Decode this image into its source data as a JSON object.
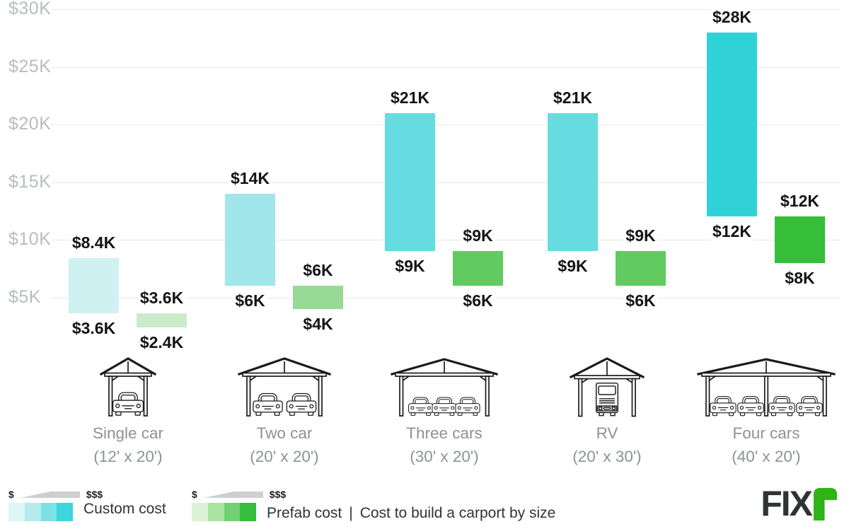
{
  "chart_data": {
    "type": "bar",
    "title": "Cost to build a carport by size",
    "ylim": [
      0,
      30
    ],
    "grid": true,
    "y_ticks": [
      "$30K",
      "$25K",
      "$20K",
      "$15K",
      "$10K",
      "$5K"
    ],
    "y_tick_values": [
      30,
      25,
      20,
      15,
      10,
      5
    ],
    "series_names": [
      "Custom cost",
      "Prefab cost"
    ],
    "categories": [
      {
        "label": "Single car",
        "dims": "(12' x 20')",
        "icon": "carport-1-car-icon",
        "custom": {
          "min": 3.6,
          "max": 8.4,
          "min_label": "$3.6K",
          "max_label": "$8.4K",
          "color": "#cff1f1"
        },
        "prefab": {
          "min": 2.4,
          "max": 3.6,
          "min_label": "$2.4K",
          "max_label": "$3.6K",
          "color": "#caebca"
        }
      },
      {
        "label": "Two car",
        "dims": "(20' x 20')",
        "icon": "carport-2-car-icon",
        "custom": {
          "min": 6,
          "max": 14,
          "min_label": "$6K",
          "max_label": "$14K",
          "color": "#a0e6ea"
        },
        "prefab": {
          "min": 4,
          "max": 6,
          "min_label": "$4K",
          "max_label": "$6K",
          "color": "#96da96"
        }
      },
      {
        "label": "Three cars",
        "dims": "(30' x 20')",
        "icon": "carport-3-car-icon",
        "custom": {
          "min": 9,
          "max": 21,
          "min_label": "$9K",
          "max_label": "$21K",
          "color": "#66dce0"
        },
        "prefab": {
          "min": 6,
          "max": 9,
          "min_label": "$6K",
          "max_label": "$9K",
          "color": "#61cb61"
        }
      },
      {
        "label": "RV",
        "dims": "(20' x 30')",
        "icon": "carport-rv-icon",
        "custom": {
          "min": 9,
          "max": 21,
          "min_label": "$9K",
          "max_label": "$21K",
          "color": "#66dce0"
        },
        "prefab": {
          "min": 6,
          "max": 9,
          "min_label": "$6K",
          "max_label": "$9K",
          "color": "#61cb61"
        }
      },
      {
        "label": "Four cars",
        "dims": "(40' x 20')",
        "icon": "carport-4-car-icon",
        "custom": {
          "min": 12,
          "max": 28,
          "min_label": "$12K",
          "max_label": "$28K",
          "color": "#31d2d7"
        },
        "prefab": {
          "min": 8,
          "max": 12,
          "min_label": "$8K",
          "max_label": "$12K",
          "color": "#36bd3a"
        }
      }
    ]
  },
  "legend": {
    "custom": {
      "label": "Custom cost",
      "low": "$",
      "high": "$$$",
      "swatch": [
        "#dff6f6",
        "#b3ecee",
        "#7ce1e6",
        "#3cd6dc"
      ]
    },
    "prefab": {
      "label": "Prefab cost",
      "low": "$",
      "high": "$$$",
      "swatch": [
        "#dcf2d6",
        "#a8e3a0",
        "#70d171",
        "#36bd3a"
      ]
    },
    "separator": "|",
    "title": "Cost to build a carport by size"
  },
  "branding": {
    "logo_text": "FIX",
    "logo_colors": {
      "text": "#2e3333",
      "mark": "#2cb514"
    }
  }
}
